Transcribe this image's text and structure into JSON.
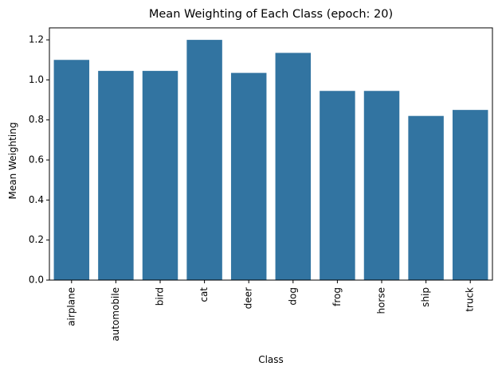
{
  "chart_data": {
    "type": "bar",
    "title": "Mean Weighting of Each Class (epoch: 20)",
    "xlabel": "Class",
    "ylabel": "Mean Weighting",
    "categories": [
      "airplane",
      "automobile",
      "bird",
      "cat",
      "deer",
      "dog",
      "frog",
      "horse",
      "ship",
      "truck"
    ],
    "values": [
      1.1,
      1.045,
      1.045,
      1.2,
      1.035,
      1.135,
      0.945,
      0.945,
      0.82,
      0.85
    ],
    "ylim": [
      0,
      1.26
    ],
    "yticks": [
      0.0,
      0.2,
      0.4,
      0.6,
      0.8,
      1.0,
      1.2
    ],
    "ytick_labels": [
      "0.0",
      "0.2",
      "0.4",
      "0.6",
      "0.8",
      "1.0",
      "1.2"
    ],
    "grid": false,
    "bar_color": "#3274a1"
  }
}
